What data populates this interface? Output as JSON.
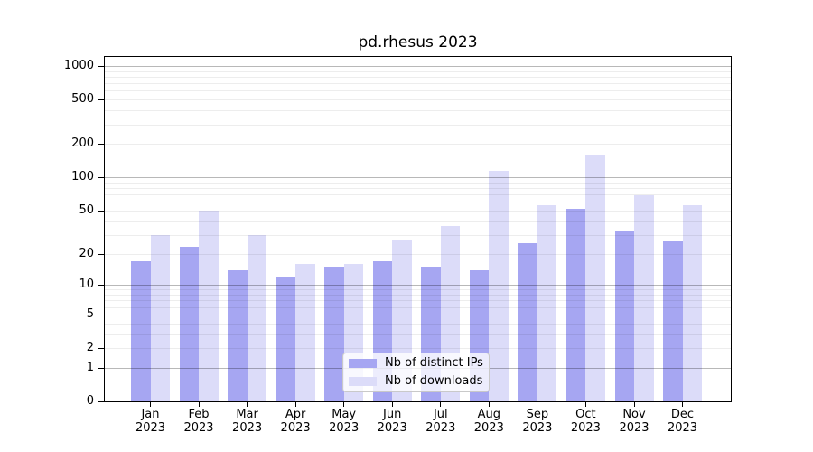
{
  "chart_data": {
    "type": "bar",
    "title": "pd.rhesus 2023",
    "months": [
      "Jan",
      "Feb",
      "Mar",
      "Apr",
      "May",
      "Jun",
      "Jul",
      "Aug",
      "Sep",
      "Oct",
      "Nov",
      "Dec"
    ],
    "year": "2023",
    "series": [
      {
        "name": "Nb of distinct IPs",
        "color": "#a6a6f2",
        "values": [
          17,
          23,
          14,
          12,
          15,
          17,
          15,
          14,
          25,
          52,
          32,
          26
        ]
      },
      {
        "name": "Nb of downloads",
        "color": "#dcdcf9",
        "values": [
          30,
          50,
          30,
          16,
          16,
          27,
          36,
          115,
          56,
          162,
          69,
          56
        ]
      }
    ],
    "y_axis": {
      "scale": "log10(value+1)",
      "ticks": [
        0,
        1,
        2,
        5,
        10,
        20,
        50,
        100,
        200,
        500,
        1000
      ],
      "ylim": [
        0,
        1240
      ]
    },
    "grid": {
      "enabled": true,
      "minor_color": "#ececec",
      "major_color": "#b3b3b3",
      "major_values": [
        1,
        10,
        100,
        1000
      ]
    },
    "legend_position": "lower-center"
  }
}
